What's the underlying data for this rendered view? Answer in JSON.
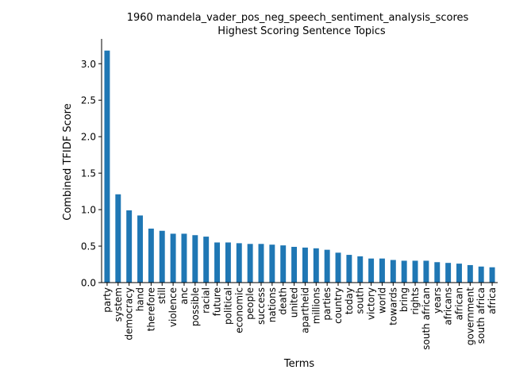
{
  "chart_data": {
    "type": "bar",
    "title": "1960 mandela_vader_pos_neg_speech_sentiment_analysis_scores",
    "subtitle": "Highest Scoring Sentence Topics",
    "xlabel": "Terms",
    "ylabel": "Combined TFIDF Score",
    "ylim": [
      0,
      3.34
    ],
    "yticks": [
      "0.0",
      "0.5",
      "1.0",
      "1.5",
      "2.0",
      "2.5",
      "3.0"
    ],
    "grid": false,
    "legend": "none",
    "bar_color": "#1f77b4",
    "categories": [
      "party",
      "system",
      "democracy",
      "hand",
      "therefore",
      "still",
      "violence",
      "anc",
      "possible",
      "racial",
      "future",
      "political",
      "economic",
      "people",
      "success",
      "nations",
      "death",
      "united",
      "apartheid",
      "millions",
      "parties",
      "country",
      "today",
      "south",
      "victory",
      "world",
      "towards",
      "bring",
      "rights",
      "south african",
      "years",
      "africans",
      "african",
      "government",
      "south africa",
      "africa"
    ],
    "values": [
      3.18,
      1.21,
      0.99,
      0.92,
      0.74,
      0.71,
      0.67,
      0.67,
      0.65,
      0.63,
      0.55,
      0.55,
      0.54,
      0.53,
      0.53,
      0.52,
      0.51,
      0.49,
      0.48,
      0.47,
      0.45,
      0.41,
      0.38,
      0.36,
      0.33,
      0.33,
      0.31,
      0.3,
      0.3,
      0.3,
      0.28,
      0.27,
      0.26,
      0.24,
      0.22,
      0.21
    ]
  }
}
